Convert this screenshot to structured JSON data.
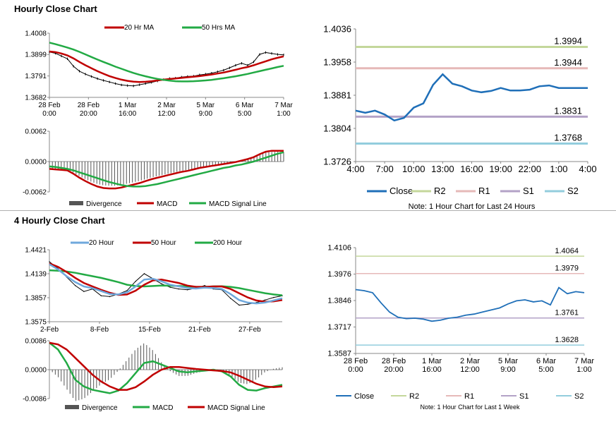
{
  "sections": {
    "hourly_title": "Hourly Close Chart",
    "four_hourly_title": "4 Hourly Close Chart"
  },
  "colors": {
    "red": "#c00000",
    "green": "#22aa44",
    "black": "#000000",
    "grey": "#555555",
    "blue": "#2a6db5",
    "close_blue": "#1f6fb8",
    "r2": "#c4d79b",
    "r1": "#e6b9b8",
    "s1": "#b3a2c7",
    "s2": "#93cddd",
    "light_blue_ma": "#6fa8dc"
  },
  "chart_data": [
    {
      "id": "hourly_price",
      "type": "line",
      "title": "",
      "legend": [
        "20 Hr MA",
        "50 Hrs MA"
      ],
      "yticks": [
        "1.4008",
        "1.3899",
        "1.3791",
        "1.3682"
      ],
      "ylim": [
        1.3682,
        1.4008
      ],
      "xticks": [
        [
          "28 Feb",
          "0:00"
        ],
        [
          "28 Feb",
          "20:00"
        ],
        [
          "1 Mar",
          "16:00"
        ],
        [
          "2 Mar",
          "12:00"
        ],
        [
          "5 Mar",
          "9:00"
        ],
        [
          "6 Mar",
          "5:00"
        ],
        [
          "7 Mar",
          "1:00"
        ]
      ],
      "series": [
        {
          "name": "Price",
          "values": [
            1.3912,
            1.3906,
            1.3892,
            1.3878,
            1.384,
            1.3815,
            1.38,
            1.3788,
            1.3777,
            1.3768,
            1.376,
            1.3752,
            1.3745,
            1.3742,
            1.374,
            1.3746,
            1.3752,
            1.3758,
            1.3765,
            1.3772,
            1.3778,
            1.378,
            1.3785,
            1.3788,
            1.379,
            1.3796,
            1.38,
            1.3805,
            1.3812,
            1.382,
            1.3832,
            1.3845,
            1.3855,
            1.3845,
            1.3862,
            1.39,
            1.391,
            1.3905,
            1.39,
            1.3898
          ]
        },
        {
          "name": "20 Hr MA",
          "values": [
            1.3915,
            1.3912,
            1.3905,
            1.3895,
            1.388,
            1.3862,
            1.3845,
            1.383,
            1.3815,
            1.3802,
            1.379,
            1.378,
            1.3772,
            1.3766,
            1.3762,
            1.376,
            1.3761,
            1.3764,
            1.3768,
            1.3772,
            1.3775,
            1.3778,
            1.3781,
            1.3784,
            1.3787,
            1.379,
            1.3794,
            1.3798,
            1.3803,
            1.3808,
            1.3815,
            1.3822,
            1.383,
            1.3836,
            1.3845,
            1.3855,
            1.3865,
            1.3875,
            1.3883,
            1.389
          ]
        },
        {
          "name": "50 Hrs MA",
          "values": [
            1.396,
            1.3952,
            1.3944,
            1.3935,
            1.3925,
            1.3913,
            1.39,
            1.3887,
            1.3874,
            1.3862,
            1.385,
            1.3838,
            1.3827,
            1.3816,
            1.3806,
            1.3797,
            1.3789,
            1.3782,
            1.3776,
            1.3771,
            1.3767,
            1.3764,
            1.3763,
            1.3763,
            1.3764,
            1.3766,
            1.3768,
            1.3771,
            1.3775,
            1.3779,
            1.3784,
            1.3789,
            1.3795,
            1.3801,
            1.3808,
            1.3815,
            1.3822,
            1.3829,
            1.3836,
            1.3842
          ]
        }
      ]
    },
    {
      "id": "hourly_macd",
      "type": "line",
      "legend": [
        "Divergence",
        "MACD",
        "MACD Signal Line"
      ],
      "yticks": [
        "0.0062",
        "0.0000",
        "-0.0062"
      ],
      "ylim": [
        -0.0062,
        0.0062
      ],
      "series": [
        {
          "name": "MACD",
          "values": [
            -0.0015,
            -0.0016,
            -0.0017,
            -0.0018,
            -0.0025,
            -0.0033,
            -0.004,
            -0.0046,
            -0.0051,
            -0.0054,
            -0.0055,
            -0.0055,
            -0.0053,
            -0.005,
            -0.0047,
            -0.0044,
            -0.004,
            -0.0036,
            -0.0033,
            -0.003,
            -0.0027,
            -0.0024,
            -0.0021,
            -0.0019,
            -0.0016,
            -0.0013,
            -0.0011,
            -0.0009,
            -0.0007,
            -0.0005,
            -0.0003,
            -0.0001,
            0.0002,
            0.0005,
            0.0009,
            0.0015,
            0.002,
            0.0022,
            0.0022,
            0.0022
          ]
        },
        {
          "name": "MACD Signal Line",
          "values": [
            -0.001,
            -0.0011,
            -0.0013,
            -0.0015,
            -0.0018,
            -0.0022,
            -0.0026,
            -0.003,
            -0.0034,
            -0.0038,
            -0.0042,
            -0.0045,
            -0.0048,
            -0.005,
            -0.0051,
            -0.0051,
            -0.005,
            -0.0048,
            -0.0046,
            -0.0043,
            -0.004,
            -0.0037,
            -0.0034,
            -0.0031,
            -0.0028,
            -0.0025,
            -0.0022,
            -0.0019,
            -0.0016,
            -0.0013,
            -0.0011,
            -0.0008,
            -0.0006,
            -0.0003,
            0.0,
            0.0004,
            0.0008,
            0.0012,
            0.0016,
            0.0019
          ]
        }
      ]
    },
    {
      "id": "hourly_pivot",
      "type": "line",
      "title": "",
      "note": "Note: 1 Hour Chart for Last 24 Hours",
      "legend": [
        "Close",
        "R2",
        "R1",
        "S1",
        "S2"
      ],
      "yticks": [
        "1.4036",
        "1.3958",
        "1.3881",
        "1.3804",
        "1.3726"
      ],
      "ylim": [
        1.3726,
        1.4036
      ],
      "xticks": [
        "4:00",
        "7:00",
        "10:00",
        "13:00",
        "16:00",
        "19:00",
        "22:00",
        "1:00",
        "4:00"
      ],
      "levels": [
        {
          "name": "R2",
          "value": 1.3994,
          "label": "1.3994"
        },
        {
          "name": "R1",
          "value": 1.3944,
          "label": "1.3944"
        },
        {
          "name": "S1",
          "value": 1.3831,
          "label": "1.3831"
        },
        {
          "name": "S2",
          "value": 1.3768,
          "label": "1.3768"
        }
      ],
      "series": [
        {
          "name": "Close",
          "values": [
            1.3845,
            1.384,
            1.3845,
            1.3836,
            1.3822,
            1.3828,
            1.3852,
            1.3862,
            1.3905,
            1.393,
            1.3908,
            1.3902,
            1.3892,
            1.3888,
            1.3891,
            1.3898,
            1.3892,
            1.3892,
            1.3894,
            1.3902,
            1.3904,
            1.3898,
            1.3898,
            1.3898,
            1.3898
          ]
        }
      ]
    },
    {
      "id": "four_hourly_price",
      "type": "line",
      "legend": [
        "20 Hour",
        "50 Hour",
        "200 Hour"
      ],
      "yticks": [
        "1.4421",
        "1.4139",
        "1.3857",
        "1.3575"
      ],
      "ylim": [
        1.3575,
        1.4421
      ],
      "xticks": [
        "2-Feb",
        "8-Feb",
        "15-Feb",
        "21-Feb",
        "27-Feb"
      ],
      "series": [
        {
          "name": "Price",
          "values": [
            1.428,
            1.42,
            1.41,
            1.4,
            1.393,
            1.396,
            1.388,
            1.387,
            1.39,
            1.394,
            1.405,
            1.414,
            1.408,
            1.402,
            1.398,
            1.396,
            1.395,
            1.397,
            1.4,
            1.396,
            1.395,
            1.385,
            1.377,
            1.378,
            1.38,
            1.383,
            1.386,
            1.388
          ]
        },
        {
          "name": "20 Hour",
          "values": [
            1.425,
            1.419,
            1.411,
            1.404,
            1.399,
            1.397,
            1.3935,
            1.39,
            1.3895,
            1.392,
            1.399,
            1.407,
            1.408,
            1.405,
            1.401,
            1.399,
            1.397,
            1.3965,
            1.3975,
            1.397,
            1.396,
            1.39,
            1.383,
            1.38,
            1.379,
            1.38,
            1.3825,
            1.385
          ]
        },
        {
          "name": "50 Hour",
          "values": [
            1.426,
            1.422,
            1.416,
            1.409,
            1.403,
            1.399,
            1.395,
            1.3915,
            1.389,
            1.3895,
            1.394,
            1.401,
            1.406,
            1.407,
            1.405,
            1.403,
            1.4,
            1.3985,
            1.3985,
            1.399,
            1.399,
            1.396,
            1.391,
            1.386,
            1.3825,
            1.381,
            1.3815,
            1.383
          ]
        },
        {
          "name": "200 Hour",
          "values": [
            1.418,
            1.4175,
            1.4165,
            1.415,
            1.413,
            1.411,
            1.409,
            1.4065,
            1.404,
            1.401,
            1.3995,
            1.399,
            1.3995,
            1.4,
            1.3998,
            1.3995,
            1.399,
            1.3985,
            1.3985,
            1.399,
            1.3992,
            1.3985,
            1.397,
            1.395,
            1.393,
            1.391,
            1.3895,
            1.3885
          ]
        }
      ]
    },
    {
      "id": "four_hourly_macd",
      "type": "line",
      "legend": [
        "Divergence",
        "MACD",
        "MACD Signal Line"
      ],
      "yticks": [
        "0.0086",
        "0.0000",
        "-0.0086"
      ],
      "ylim": [
        -0.0086,
        0.0086
      ],
      "series": [
        {
          "name": "MACD",
          "values": [
            0.008,
            0.006,
            0.002,
            -0.003,
            -0.005,
            -0.006,
            -0.0065,
            -0.007,
            -0.0062,
            -0.004,
            -0.001,
            0.002,
            0.0025,
            0.0015,
            0.0005,
            -0.0005,
            -0.0008,
            -0.0005,
            -0.0003,
            0.0,
            -0.0005,
            -0.002,
            -0.0045,
            -0.006,
            -0.0062,
            -0.0055,
            -0.005,
            -0.0045
          ]
        },
        {
          "name": "MACD Signal Line",
          "values": [
            0.008,
            0.0075,
            0.006,
            0.0035,
            0.001,
            -0.0015,
            -0.0035,
            -0.005,
            -0.006,
            -0.006,
            -0.0052,
            -0.0035,
            -0.0015,
            0.0,
            0.0008,
            0.0008,
            0.0005,
            0.0002,
            0.0,
            -0.0002,
            -0.0004,
            -0.0008,
            -0.0018,
            -0.003,
            -0.0042,
            -0.005,
            -0.0052,
            -0.005
          ]
        }
      ]
    },
    {
      "id": "four_hourly_pivot",
      "type": "line",
      "note": "Note: 1 Hour Chart for Last 1 Week",
      "legend": [
        "Close",
        "R2",
        "R1",
        "S1",
        "S2"
      ],
      "yticks": [
        "1.4106",
        "1.3976",
        "1.3846",
        "1.3717",
        "1.3587"
      ],
      "ylim": [
        1.3587,
        1.4106
      ],
      "xticks": [
        [
          "28 Feb",
          "0:00"
        ],
        [
          "28 Feb",
          "20:00"
        ],
        [
          "1 Mar",
          "16:00"
        ],
        [
          "2 Mar",
          "12:00"
        ],
        [
          "5 Mar",
          "9:00"
        ],
        [
          "6 Mar",
          "5:00"
        ],
        [
          "7 Mar",
          "1:00"
        ]
      ],
      "levels": [
        {
          "name": "R2",
          "value": 1.4064,
          "label": "1.4064"
        },
        {
          "name": "R1",
          "value": 1.3979,
          "label": "1.3979"
        },
        {
          "name": "S1",
          "value": 1.3761,
          "label": "1.3761"
        },
        {
          "name": "S2",
          "value": 1.3628,
          "label": "1.3628"
        }
      ],
      "series": [
        {
          "name": "Close",
          "values": [
            1.39,
            1.3895,
            1.3885,
            1.3835,
            1.379,
            1.3765,
            1.3758,
            1.376,
            1.3755,
            1.3745,
            1.375,
            1.376,
            1.3765,
            1.3775,
            1.378,
            1.379,
            1.38,
            1.381,
            1.383,
            1.3845,
            1.385,
            1.384,
            1.3845,
            1.3825,
            1.391,
            1.388,
            1.389,
            1.3885
          ]
        }
      ]
    }
  ]
}
